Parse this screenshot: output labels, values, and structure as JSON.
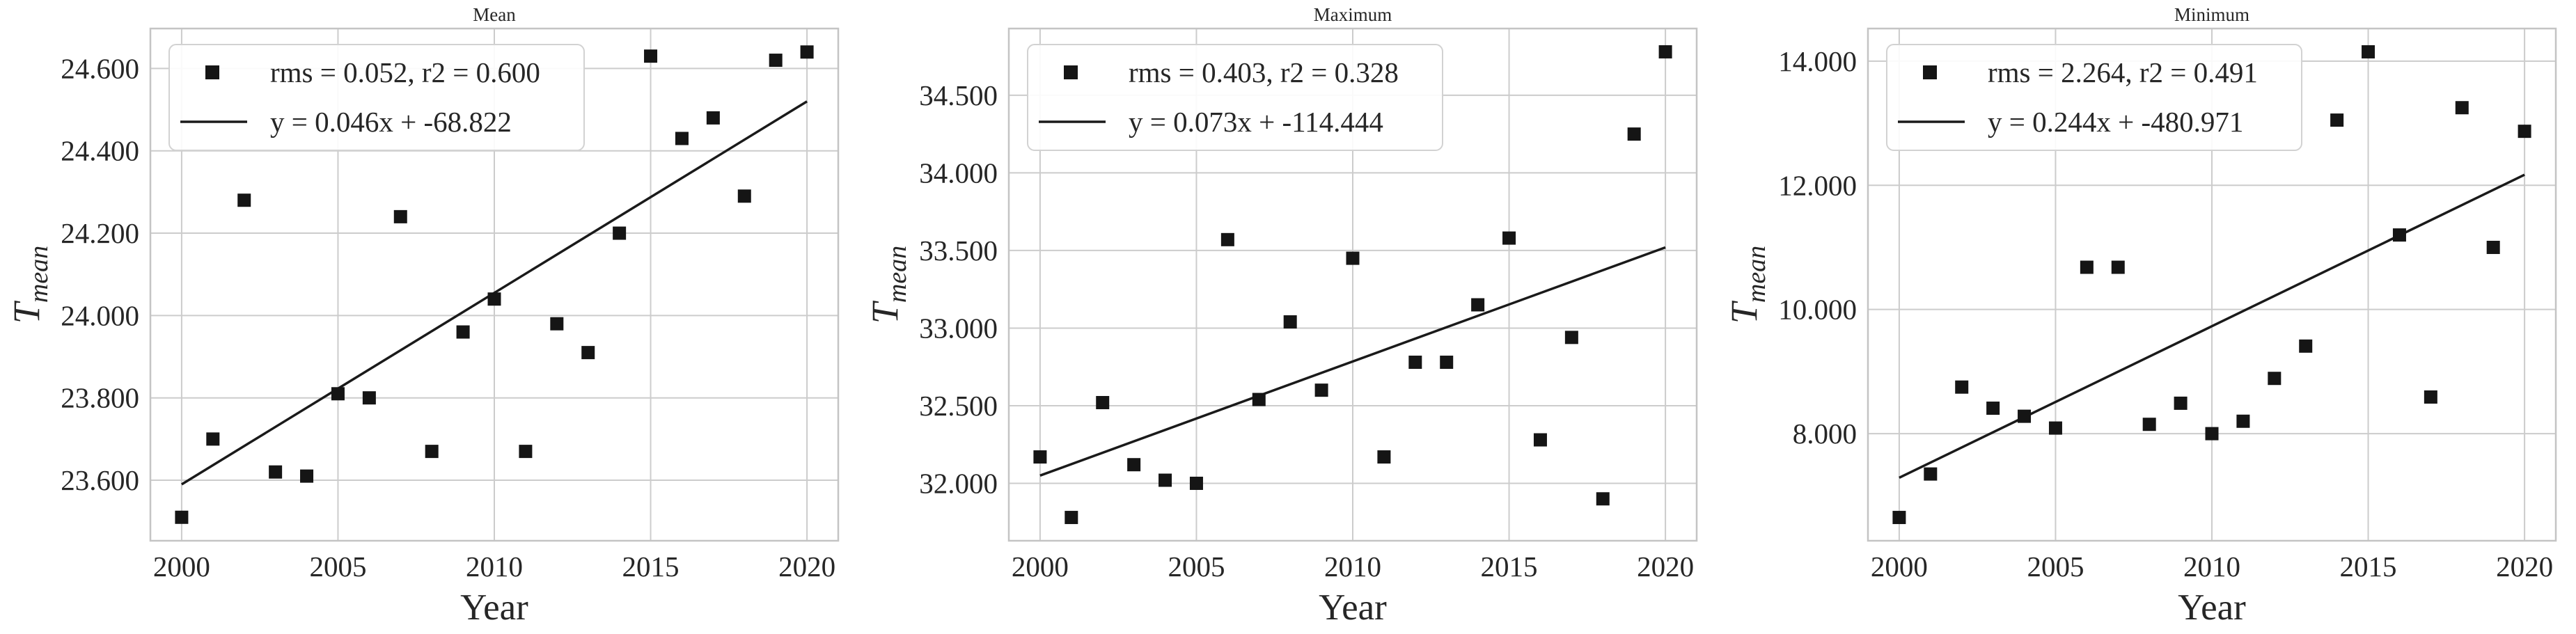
{
  "figure": {
    "background": "#ffffff",
    "text_color": "#262626",
    "grid_color": "#cccccc",
    "spine_color": "#c4c4c4",
    "marker_color": "#151515",
    "fit_line_color": "#1a1a1a",
    "legend_border_color": "#d2d2d2",
    "legend_background": "#ffffff"
  },
  "chart_data": [
    {
      "type": "scatter",
      "title": "Mean",
      "xlabel": "Year",
      "ylabel_base": "T",
      "ylabel_sub": "mean",
      "legend_position": "upper left",
      "legend": {
        "scatter_label": "rms = 0.052, r2 = 0.600",
        "line_label": "y = 0.046x + -68.822"
      },
      "grid": true,
      "xlim": [
        1999,
        2021
      ],
      "ylim": [
        23.453,
        24.697
      ],
      "x_ticks": [
        2000,
        2005,
        2010,
        2015,
        2020
      ],
      "x_tick_labels": [
        "2000",
        "2005",
        "2010",
        "2015",
        "2020"
      ],
      "y_ticks": [
        23.6,
        23.8,
        24.0,
        24.2,
        24.4,
        24.6
      ],
      "y_tick_labels": [
        "23.600",
        "23.800",
        "24.000",
        "24.200",
        "24.400",
        "24.600"
      ],
      "x": [
        2000,
        2001,
        2002,
        2003,
        2004,
        2005,
        2006,
        2007,
        2008,
        2009,
        2010,
        2011,
        2012,
        2013,
        2014,
        2015,
        2016,
        2017,
        2018,
        2019,
        2020
      ],
      "y": [
        23.51,
        23.7,
        24.28,
        23.62,
        23.61,
        23.81,
        23.8,
        24.24,
        23.67,
        23.96,
        24.04,
        23.67,
        23.98,
        23.91,
        24.2,
        24.63,
        24.43,
        24.48,
        24.29,
        24.62,
        24.64
      ],
      "fit_line": {
        "slope": 0.046,
        "intercept": -68.822,
        "x1": 2000,
        "y1": 23.59,
        "x2": 2020,
        "y2": 24.52
      }
    },
    {
      "type": "scatter",
      "title": "Maximum",
      "xlabel": "Year",
      "ylabel_base": "T",
      "ylabel_sub": "mean",
      "legend_position": "upper left",
      "legend": {
        "scatter_label": "rms = 0.403, r2 = 0.328",
        "line_label": "y = 0.073x + -114.444"
      },
      "grid": true,
      "xlim": [
        1999,
        2021
      ],
      "ylim": [
        31.63,
        34.93
      ],
      "x_ticks": [
        2000,
        2005,
        2010,
        2015,
        2020
      ],
      "x_tick_labels": [
        "2000",
        "2005",
        "2010",
        "2015",
        "2020"
      ],
      "y_ticks": [
        32.0,
        32.5,
        33.0,
        33.5,
        34.0,
        34.5
      ],
      "y_tick_labels": [
        "32.000",
        "32.500",
        "33.000",
        "33.500",
        "34.000",
        "34.500"
      ],
      "x": [
        2000,
        2001,
        2002,
        2003,
        2004,
        2005,
        2006,
        2007,
        2008,
        2009,
        2010,
        2011,
        2012,
        2013,
        2014,
        2015,
        2016,
        2017,
        2018,
        2019,
        2020
      ],
      "y": [
        32.17,
        31.78,
        32.52,
        32.12,
        32.02,
        32.0,
        33.57,
        32.54,
        33.04,
        32.6,
        33.45,
        32.17,
        32.78,
        32.78,
        33.15,
        33.58,
        32.28,
        32.94,
        31.9,
        34.25,
        34.78
      ],
      "fit_line": {
        "slope": 0.073,
        "intercept": -114.444,
        "x1": 2000,
        "y1": 32.05,
        "x2": 2020,
        "y2": 33.52
      }
    },
    {
      "type": "scatter",
      "title": "Minimum",
      "xlabel": "Year",
      "ylabel_base": "T",
      "ylabel_sub": "mean",
      "legend_position": "upper left",
      "legend": {
        "scatter_label": "rms = 2.264, r2 = 0.491",
        "line_label": "y = 0.244x + -480.971"
      },
      "grid": true,
      "xlim": [
        1999,
        2021
      ],
      "ylim": [
        6.275,
        14.525
      ],
      "x_ticks": [
        2000,
        2005,
        2010,
        2015,
        2020
      ],
      "x_tick_labels": [
        "2000",
        "2005",
        "2010",
        "2015",
        "2020"
      ],
      "y_ticks": [
        8.0,
        10.0,
        12.0,
        14.0
      ],
      "y_tick_labels": [
        "8.000",
        "10.000",
        "12.000",
        "14.000"
      ],
      "x": [
        2000,
        2001,
        2002,
        2003,
        2004,
        2005,
        2006,
        2007,
        2008,
        2009,
        2010,
        2011,
        2012,
        2013,
        2014,
        2015,
        2016,
        2017,
        2018,
        2019,
        2020
      ],
      "y": [
        6.65,
        7.35,
        8.75,
        8.41,
        8.28,
        8.09,
        10.68,
        10.68,
        8.15,
        8.49,
        8.0,
        8.2,
        8.89,
        9.41,
        13.05,
        14.15,
        11.2,
        8.59,
        13.25,
        11.0,
        12.87
      ],
      "fit_line": {
        "slope": 0.244,
        "intercept": -480.971,
        "x1": 2000,
        "y1": 7.29,
        "x2": 2020,
        "y2": 12.17
      }
    }
  ]
}
